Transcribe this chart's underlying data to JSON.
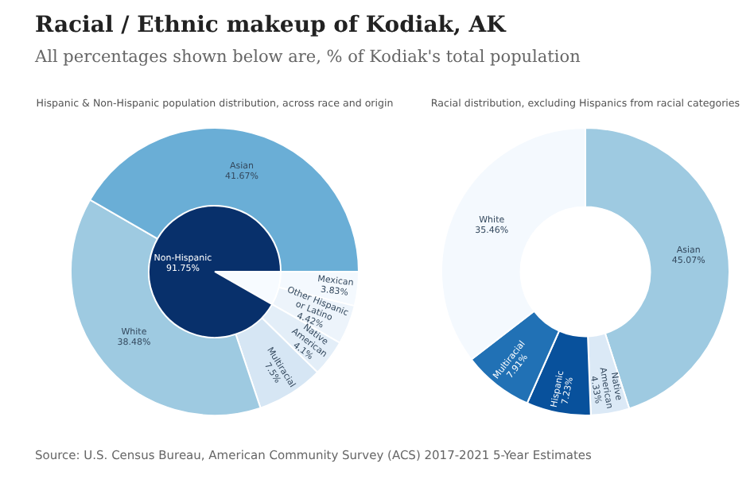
{
  "chart_data": [
    {
      "type": "other",
      "title": "Racial / Ethnic makeup of Kodiak, AK",
      "subtitle": "All percentages shown below are, % of Kodiak's total population",
      "annotations": [
        "Source: U.S. Census Bureau, American Community Survey (ACS) 2017-2021 5-Year Estimates"
      ]
    },
    {
      "type": "donut",
      "title": "Hispanic & Non-Hispanic population distribution, across race and origin",
      "legend": false,
      "categories": [
        "Mexican",
        "Other Hispanic or Latino",
        "Native American",
        "Multiracial",
        "White",
        "Asian"
      ],
      "values": [
        3.83,
        4.42,
        4.1,
        7.5,
        38.48,
        41.67
      ],
      "value_labels": [
        "3.83%",
        "4.42%",
        "4.1%",
        "7.5%",
        "38.48%",
        "41.67%"
      ],
      "colors": [
        "#f4f9fe",
        "#edf4fb",
        "#e3eef8",
        "#d6e6f4",
        "#9ecae1",
        "#6aaed6"
      ]
    },
    {
      "type": "pie",
      "legend": false,
      "categories": [
        null,
        "Non-Hispanic"
      ],
      "values": [
        8.25,
        91.75
      ],
      "value_labels": [
        null,
        "91.75%"
      ],
      "colors": [
        "#f7fbff",
        "#08306b"
      ]
    },
    {
      "type": "donut",
      "title": "Racial distribution, excluding Hispanics from racial categories",
      "legend": false,
      "categories": [
        "Asian",
        "Native American",
        "Hispanic",
        "Multiracial",
        "White"
      ],
      "values": [
        45.07,
        4.33,
        7.23,
        7.91,
        35.46
      ],
      "value_labels": [
        "45.07%",
        "4.33%",
        "7.23%",
        "7.91%",
        "35.46%"
      ],
      "colors": [
        "#9ecae1",
        "#dbe9f6",
        "#08519c",
        "#2171b5",
        "#f4f9fe"
      ]
    }
  ]
}
